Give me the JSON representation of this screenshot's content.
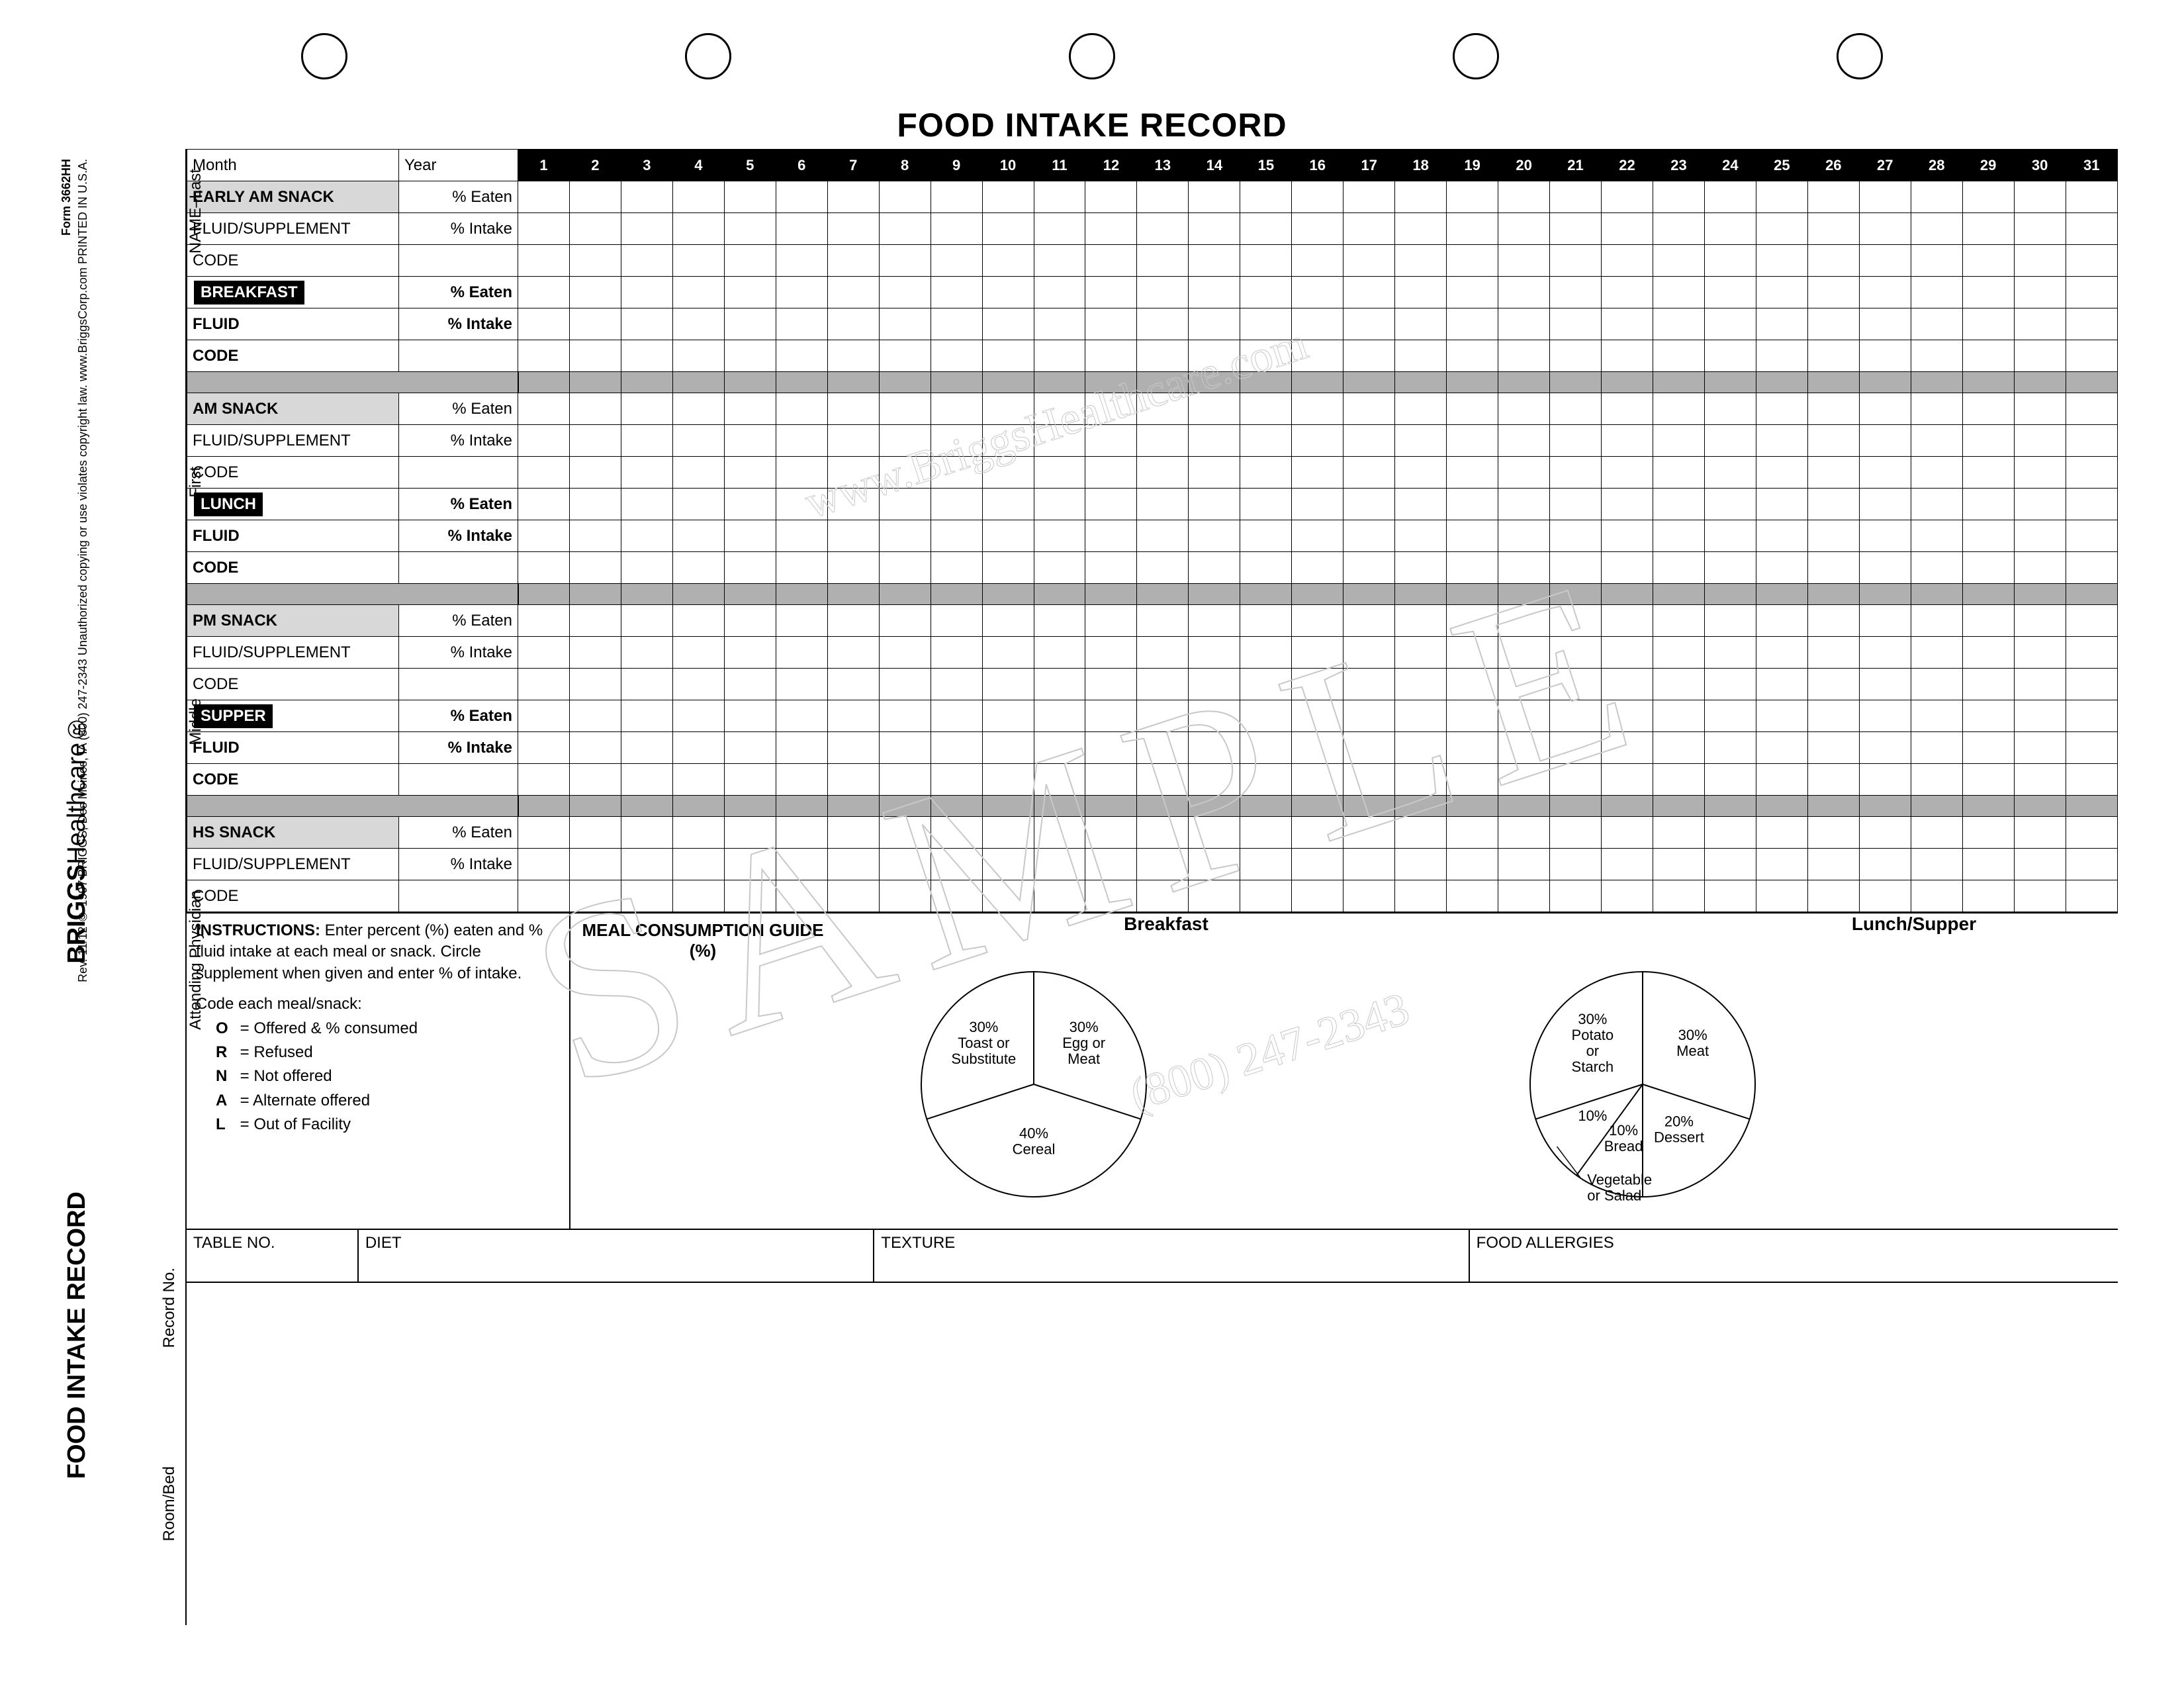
{
  "title": "FOOD INTAKE RECORD",
  "brand_bold": "BRIGGS",
  "brand_light": "Healthcare",
  "record_title_vert": "FOOD INTAKE RECORD",
  "form_no_line": "Form 3662HH",
  "fine_print": "Rev. 11/12   © 1997 BRIGGS, Des Moines, IA  (800) 247-2343   Unauthorized copying or use violates copyright law.  www.BriggsCorp.com  PRINTED IN U.S.A.",
  "watermark": "SAMPLE",
  "watermark_url": "www.BriggsHealthcare.com",
  "watermark_phone": "(800) 247-2343",
  "side_labels": {
    "name_last": "NAME–Last",
    "first": "First",
    "middle": "Middle",
    "attending": "Attending Physician",
    "record_no": "Record No.",
    "room_bed": "Room/Bed"
  },
  "header_row": {
    "month": "Month",
    "year": "Year"
  },
  "days": [
    "1",
    "2",
    "3",
    "4",
    "5",
    "6",
    "7",
    "8",
    "9",
    "10",
    "11",
    "12",
    "13",
    "14",
    "15",
    "16",
    "17",
    "18",
    "19",
    "20",
    "21",
    "22",
    "23",
    "24",
    "25",
    "26",
    "27",
    "28",
    "29",
    "30",
    "31"
  ],
  "sections": [
    {
      "meal": "EARLY AM SNACK",
      "meal_style": "shade",
      "rows": [
        {
          "label": "EARLY AM SNACK",
          "metric": "% Eaten",
          "bold": false,
          "shade": true
        },
        {
          "label": "FLUID/SUPPLEMENT",
          "metric": "% Intake",
          "bold": false
        },
        {
          "label": "CODE",
          "metric": "",
          "bold": false
        }
      ]
    },
    {
      "meal": "BREAKFAST",
      "meal_style": "tag",
      "rows": [
        {
          "label": "BREAKFAST",
          "metric": "% Eaten",
          "bold": true,
          "tag": true
        },
        {
          "label": "FLUID",
          "metric": "% Intake",
          "bold": true
        },
        {
          "label": "CODE",
          "metric": "",
          "bold": true
        }
      ],
      "divider_after": true
    },
    {
      "meal": "AM SNACK",
      "meal_style": "shade",
      "rows": [
        {
          "label": "AM SNACK",
          "metric": "% Eaten",
          "bold": false,
          "shade": true
        },
        {
          "label": "FLUID/SUPPLEMENT",
          "metric": "% Intake",
          "bold": false
        },
        {
          "label": "CODE",
          "metric": "",
          "bold": false
        }
      ]
    },
    {
      "meal": "LUNCH",
      "meal_style": "tag",
      "rows": [
        {
          "label": "LUNCH",
          "metric": "% Eaten",
          "bold": true,
          "tag": true
        },
        {
          "label": "FLUID",
          "metric": "% Intake",
          "bold": true
        },
        {
          "label": "CODE",
          "metric": "",
          "bold": true
        }
      ],
      "divider_after": true
    },
    {
      "meal": "PM SNACK",
      "meal_style": "shade",
      "rows": [
        {
          "label": "PM SNACK",
          "metric": "% Eaten",
          "bold": false,
          "shade": true
        },
        {
          "label": "FLUID/SUPPLEMENT",
          "metric": "% Intake",
          "bold": false
        },
        {
          "label": "CODE",
          "metric": "",
          "bold": false
        }
      ]
    },
    {
      "meal": "SUPPER",
      "meal_style": "tag",
      "rows": [
        {
          "label": "SUPPER",
          "metric": "% Eaten",
          "bold": true,
          "tag": true
        },
        {
          "label": "FLUID",
          "metric": "% Intake",
          "bold": true
        },
        {
          "label": "CODE",
          "metric": "",
          "bold": true
        }
      ],
      "divider_after": true
    },
    {
      "meal": "HS SNACK",
      "meal_style": "shade",
      "rows": [
        {
          "label": "HS SNACK",
          "metric": "% Eaten",
          "bold": false,
          "shade": true
        },
        {
          "label": "FLUID/SUPPLEMENT",
          "metric": "% Intake",
          "bold": false
        },
        {
          "label": "CODE",
          "metric": "",
          "bold": false
        }
      ]
    }
  ],
  "instructions": {
    "heading": "INSTRUCTIONS:",
    "body": "Enter percent (%) eaten and % fluid intake at each meal or snack. Circle supplement when given and enter % of intake.",
    "code_intro": "Code each meal/snack:",
    "codes": [
      {
        "k": "O",
        "v": "= Offered & % consumed"
      },
      {
        "k": "R",
        "v": "= Refused"
      },
      {
        "k": "N",
        "v": "= Not offered"
      },
      {
        "k": "A",
        "v": "= Alternate offered"
      },
      {
        "k": "L",
        "v": "= Out of Facility"
      }
    ]
  },
  "guide_title": "MEAL CONSUMPTION GUIDE (%)",
  "pies": {
    "breakfast": {
      "title": "Breakfast",
      "slices": [
        {
          "label": "30%\nEgg or\nMeat",
          "pct": 30
        },
        {
          "label": "40%\nCereal",
          "pct": 40
        },
        {
          "label": "30%\nToast or\nSubstitute",
          "pct": 30
        }
      ],
      "stroke": "#000",
      "fill": "#ffffff",
      "line_w": 2,
      "radius": 170
    },
    "lunch": {
      "title": "Lunch/Supper",
      "slices": [
        {
          "label": "30%\nMeat",
          "pct": 30
        },
        {
          "label": "20%\nDessert",
          "pct": 20
        },
        {
          "label": "10%\nBread",
          "pct": 10
        },
        {
          "label": "10%",
          "pct": 10,
          "ext_label": "Vegetable\nor Salad"
        },
        {
          "label": "30%\nPotato\nor\nStarch",
          "pct": 30
        }
      ],
      "stroke": "#000",
      "fill": "#ffffff",
      "line_w": 2,
      "radius": 170
    }
  },
  "bottom_fields": [
    "TABLE NO.",
    "DIET",
    "TEXTURE",
    "FOOD ALLERGIES"
  ],
  "bottom_field_widths": [
    260,
    780,
    900,
    980
  ],
  "colors": {
    "black": "#000000",
    "white": "#ffffff",
    "shade": "#d8d8d8",
    "divider": "#b0b0b0",
    "wm": "#c8c8c8"
  }
}
